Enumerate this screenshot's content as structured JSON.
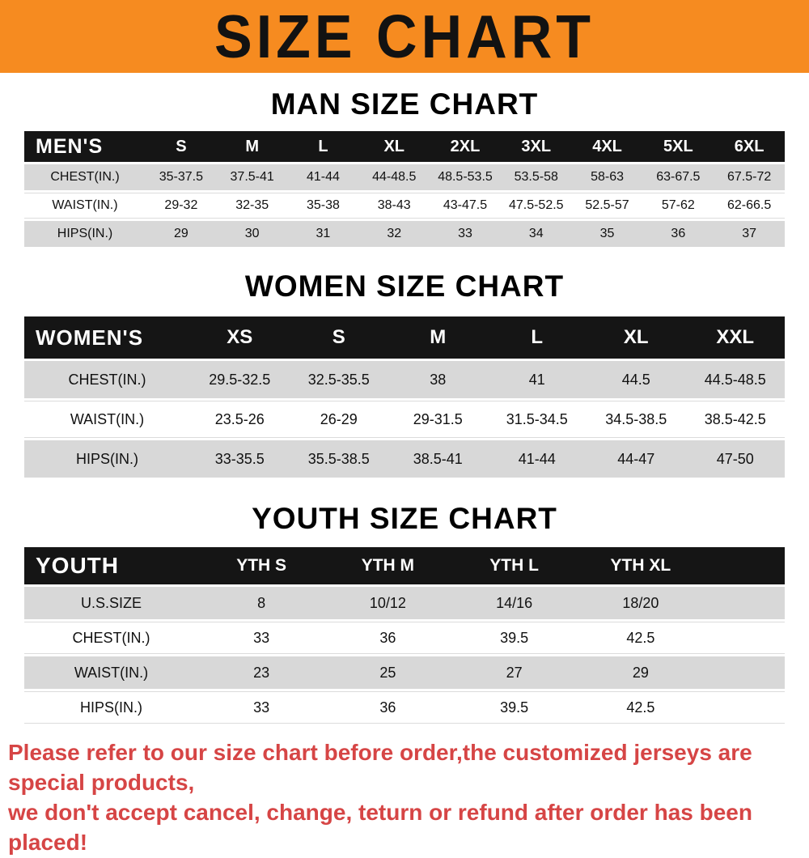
{
  "banner": {
    "title": "SIZE CHART"
  },
  "colors": {
    "banner_bg": "#f68b20",
    "table_header_bg": "#151515",
    "row_stripe": "#d8d8d8",
    "footer_red": "#d64545"
  },
  "men": {
    "heading": "MAN SIZE CHART",
    "label": "MEN'S",
    "columns": [
      "S",
      "M",
      "L",
      "XL",
      "2XL",
      "3XL",
      "4XL",
      "5XL",
      "6XL"
    ],
    "rows": [
      {
        "label": "CHEST(IN.)",
        "values": [
          "35-37.5",
          "37.5-41",
          "41-44",
          "44-48.5",
          "48.5-53.5",
          "53.5-58",
          "58-63",
          "63-67.5",
          "67.5-72"
        ]
      },
      {
        "label": "WAIST(IN.)",
        "values": [
          "29-32",
          "32-35",
          "35-38",
          "38-43",
          "43-47.5",
          "47.5-52.5",
          "52.5-57",
          "57-62",
          "62-66.5"
        ]
      },
      {
        "label": "HIPS(IN.)",
        "values": [
          "29",
          "30",
          "31",
          "32",
          "33",
          "34",
          "35",
          "36",
          "37"
        ]
      }
    ]
  },
  "women": {
    "heading": "WOMEN SIZE CHART",
    "label": "WOMEN'S",
    "columns": [
      "XS",
      "S",
      "M",
      "L",
      "XL",
      "XXL"
    ],
    "rows": [
      {
        "label": "CHEST(IN.)",
        "values": [
          "29.5-32.5",
          "32.5-35.5",
          "38",
          "41",
          "44.5",
          "44.5-48.5"
        ]
      },
      {
        "label": "WAIST(IN.)",
        "values": [
          "23.5-26",
          "26-29",
          "29-31.5",
          "31.5-34.5",
          "34.5-38.5",
          "38.5-42.5"
        ]
      },
      {
        "label": "HIPS(IN.)",
        "values": [
          "33-35.5",
          "35.5-38.5",
          "38.5-41",
          "41-44",
          "44-47",
          "47-50"
        ]
      }
    ]
  },
  "youth": {
    "heading": "YOUTH SIZE CHART",
    "label": "YOUTH",
    "columns": [
      "YTH S",
      "YTH M",
      "YTH L",
      "YTH XL"
    ],
    "rows": [
      {
        "label": "U.S.SIZE",
        "values": [
          "8",
          "10/12",
          "14/16",
          "18/20"
        ]
      },
      {
        "label": "CHEST(IN.)",
        "values": [
          "33",
          "36",
          "39.5",
          "42.5"
        ]
      },
      {
        "label": "WAIST(IN.)",
        "values": [
          "23",
          "25",
          "27",
          "29"
        ]
      },
      {
        "label": "HIPS(IN.)",
        "values": [
          "33",
          "36",
          "39.5",
          "42.5"
        ]
      }
    ]
  },
  "footer": {
    "line1": "Please refer to our size chart before order,the customized jerseys are special products,",
    "line2": "we don't accept cancel, change, teturn or refund after order has been placed!"
  }
}
